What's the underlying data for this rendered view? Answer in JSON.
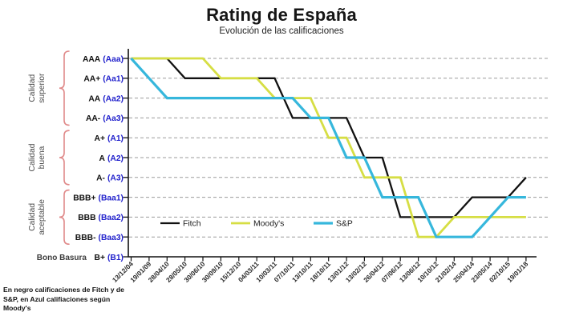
{
  "footnote": {
    "text": "En negro calificaciones de Fitch y de\nS&P, en Azul califiaciones según\nMoody's"
  },
  "colors": {
    "fitch": "#111111",
    "moodys": "#d6de44",
    "sp": "#36b7dc",
    "moodys_label_blue": "#2222cc",
    "bracket_salmon": "#e08a8a",
    "gridline_gray": "#9b9b9b",
    "axis_black": "#111111"
  },
  "chart_data": {
    "type": "line",
    "title": "Rating de España",
    "subtitle": "Evolución de las calificaciones",
    "grid": true,
    "legend_position": "inside-bottom",
    "categories": [
      "13/12/04",
      "19/01/09",
      "28/04/10",
      "28/05/10",
      "30/06/10",
      "30/09/10",
      "15/12/10",
      "04/03/11",
      "10/03/11",
      "07/10/11",
      "13/10/11",
      "18/10/11",
      "13/01/12",
      "13/02/12",
      "26/04/12",
      "07/06/12",
      "13/06/12",
      "10/10/12",
      "21/02/14",
      "25/04/14",
      "23/05/14",
      "02/10/15",
      "19/01/18"
    ],
    "y_axis": {
      "description": "Credit rating scale, Fitch/S&P notation with Moody's equivalent in parentheses; 10=AAA(Aaa) ... 0=B+(B1)",
      "levels": [
        {
          "value": 10,
          "fitch_sp": "AAA",
          "moodys": "(Aaa)"
        },
        {
          "value": 9,
          "fitch_sp": "AA+",
          "moodys": "(Aa1)"
        },
        {
          "value": 8,
          "fitch_sp": "AA",
          "moodys": "(Aa2)"
        },
        {
          "value": 7,
          "fitch_sp": "AA-",
          "moodys": "(Aa3)"
        },
        {
          "value": 6,
          "fitch_sp": "A+",
          "moodys": "(A1)"
        },
        {
          "value": 5,
          "fitch_sp": "A",
          "moodys": "(A2)"
        },
        {
          "value": 4,
          "fitch_sp": "A-",
          "moodys": "(A3)"
        },
        {
          "value": 3,
          "fitch_sp": "BBB+",
          "moodys": "(Baa1)"
        },
        {
          "value": 2,
          "fitch_sp": "BBB",
          "moodys": "(Baa2)"
        },
        {
          "value": 1,
          "fitch_sp": "BBB-",
          "moodys": "(Baa3)"
        },
        {
          "value": 0,
          "fitch_sp": "B+",
          "moodys": "(B1)",
          "prefix": "Bono Basura"
        }
      ]
    },
    "groups": [
      {
        "label": [
          "Calidad",
          "superior"
        ],
        "top_level": 10,
        "bottom_level": 7
      },
      {
        "label": [
          "Calidad",
          "buena"
        ],
        "top_level": 6,
        "bottom_level": 4
      },
      {
        "label": [
          "Calidad",
          "aceptable"
        ],
        "top_level": 3,
        "bottom_level": 1
      }
    ],
    "series": [
      {
        "name": "Fitch",
        "color": "#111111",
        "width": 2.3,
        "values": [
          10,
          10,
          10,
          9,
          9,
          9,
          9,
          9,
          9,
          7,
          7,
          7,
          7,
          5,
          5,
          2,
          2,
          2,
          2,
          3,
          3,
          3,
          4
        ]
      },
      {
        "name": "Moody's",
        "color": "#d6de44",
        "width": 2.8,
        "values": [
          10,
          10,
          10,
          10,
          10,
          9,
          9,
          9,
          8,
          8,
          8,
          6,
          6,
          4,
          4,
          4,
          1,
          1,
          2,
          2,
          2,
          2,
          2
        ]
      },
      {
        "name": "S&P",
        "color": "#36b7dc",
        "width": 3.2,
        "values": [
          10,
          9,
          8,
          8,
          8,
          8,
          8,
          8,
          8,
          8,
          7,
          7,
          5,
          5,
          3,
          3,
          3,
          1,
          1,
          1,
          2,
          3,
          3
        ]
      }
    ]
  }
}
